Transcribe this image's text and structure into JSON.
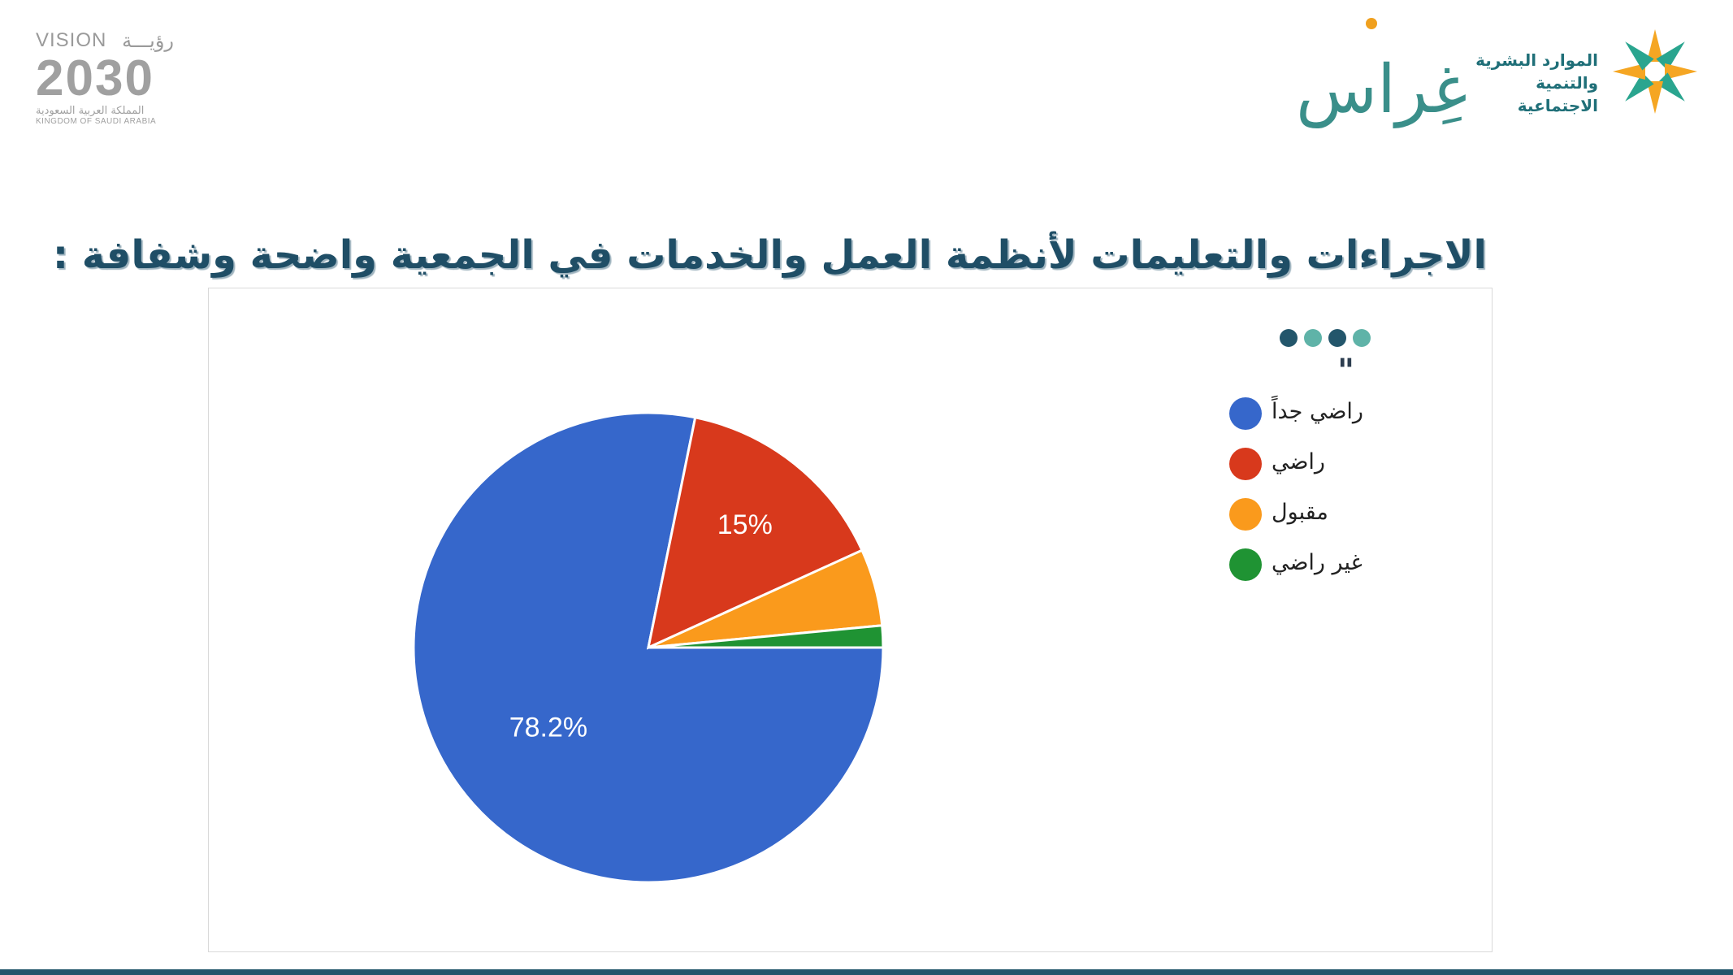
{
  "header": {
    "vision_logo": {
      "vision_label": "VISION",
      "vision_ar": "رؤيـــة",
      "number": "2030",
      "kingdom_ar": "المملكة العربية السعودية",
      "kingdom_en": "KINGDOM OF SAUDI ARABIA"
    },
    "ghiras_logo": {
      "text": "غِراس"
    },
    "ministry_logo": {
      "line1": "الموارد البشرية",
      "line2": "والتنمية الاجتماعية"
    }
  },
  "slide": {
    "title": "الاجراءات والتعليمات لأنظمة العمل والخدمات في الجمعية واضحة وشفافة :"
  },
  "legend_decor": {
    "dot_colors": [
      "#23566b",
      "#5fb3a8",
      "#23566b",
      "#5fb3a8"
    ],
    "quote_mark": "\""
  },
  "chart_data": {
    "type": "pie",
    "categories": [
      "راضي جداً",
      "راضي",
      "مقبول",
      "غير راضي"
    ],
    "values": [
      78.2,
      15,
      5.3,
      1.5
    ],
    "data_labels": [
      "78.2%",
      "15%",
      "",
      ""
    ],
    "colors": [
      "#3667cb",
      "#d8391c",
      "#fa9a1c",
      "#1f9333"
    ],
    "legend_position": "right"
  }
}
